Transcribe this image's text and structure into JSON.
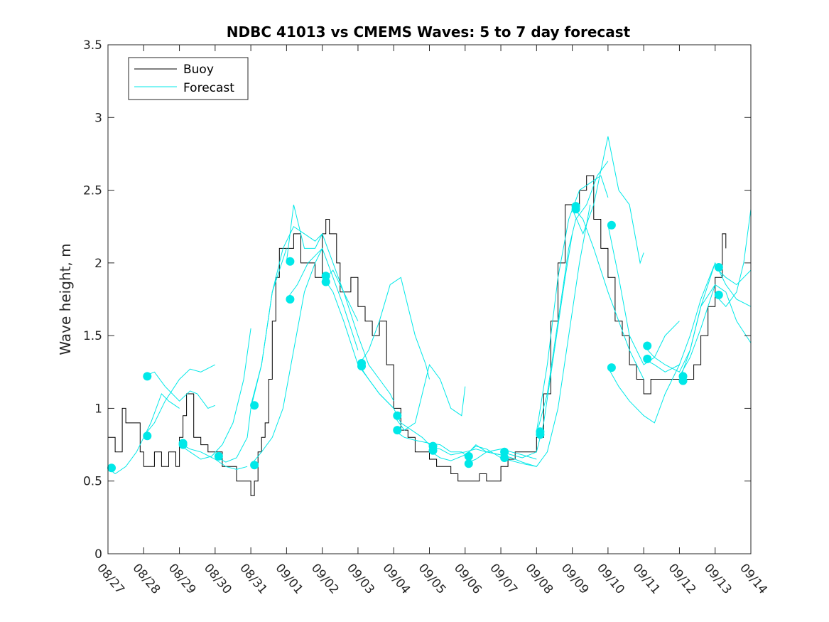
{
  "chart_data": {
    "type": "line",
    "title": "NDBC 41013 vs CMEMS Waves: 5 to 7 day forecast",
    "xlabel": "",
    "ylabel": "Wave height, m",
    "xlim": [
      0,
      18
    ],
    "ylim": [
      0,
      3.5
    ],
    "x_ticks": [
      0,
      1,
      2,
      3,
      4,
      5,
      6,
      7,
      8,
      9,
      10,
      11,
      12,
      13,
      14,
      15,
      16,
      17,
      18
    ],
    "x_tick_labels": [
      "08/27",
      "08/28",
      "08/29",
      "08/30",
      "08/31",
      "09/01",
      "09/02",
      "09/03",
      "09/04",
      "09/05",
      "09/06",
      "09/07",
      "09/08",
      "09/09",
      "09/10",
      "09/11",
      "09/12",
      "09/13",
      "09/14"
    ],
    "y_ticks": [
      0,
      0.5,
      1,
      1.5,
      2,
      2.5,
      3,
      3.5
    ],
    "y_tick_labels": [
      "0",
      "0.5",
      "1",
      "1.5",
      "2",
      "2.5",
      "3",
      "3.5"
    ],
    "grid": false,
    "legend": {
      "position": "top-left",
      "entries": [
        "Buoy",
        "Forecast"
      ]
    },
    "colors": {
      "buoy": "#000000",
      "forecast": "#00e8e8"
    },
    "series": [
      {
        "name": "Buoy",
        "x": [
          0,
          0.2,
          0.4,
          0.5,
          0.7,
          0.9,
          1.0,
          1.1,
          1.3,
          1.5,
          1.7,
          1.9,
          2.0,
          2.1,
          2.2,
          2.4,
          2.6,
          2.8,
          3.0,
          3.2,
          3.4,
          3.6,
          3.8,
          3.9,
          4.0,
          4.1,
          4.2,
          4.3,
          4.4,
          4.5,
          4.6,
          4.7,
          4.8,
          5.0,
          5.2,
          5.4,
          5.6,
          5.8,
          6.0,
          6.1,
          6.2,
          6.3,
          6.4,
          6.5,
          6.6,
          6.8,
          7.0,
          7.2,
          7.4,
          7.6,
          7.8,
          8.0,
          8.2,
          8.4,
          8.6,
          8.8,
          9.0,
          9.2,
          9.4,
          9.6,
          9.8,
          10.0,
          10.2,
          10.4,
          10.6,
          10.8,
          11.0,
          11.2,
          11.4,
          11.6,
          11.8,
          12.0,
          12.2,
          12.4,
          12.6,
          12.8,
          13.0,
          13.2,
          13.4,
          13.6,
          13.8,
          14.0,
          14.2,
          14.4,
          14.6,
          14.8,
          15.0,
          15.2,
          15.4,
          15.6,
          15.8,
          16.0,
          16.2,
          16.4,
          16.6,
          16.8,
          17.0,
          17.2,
          17.3
        ],
        "values": [
          0.8,
          0.7,
          1.0,
          0.9,
          0.9,
          0.7,
          0.6,
          0.6,
          0.7,
          0.6,
          0.7,
          0.6,
          0.8,
          0.95,
          1.1,
          0.8,
          0.75,
          0.7,
          0.7,
          0.6,
          0.6,
          0.5,
          0.5,
          0.5,
          0.4,
          0.5,
          0.7,
          0.8,
          0.9,
          1.2,
          1.6,
          1.9,
          2.1,
          2.1,
          2.2,
          2.0,
          2.0,
          1.9,
          2.2,
          2.3,
          2.2,
          2.2,
          2.0,
          1.8,
          1.8,
          1.9,
          1.7,
          1.6,
          1.5,
          1.6,
          1.3,
          1.0,
          0.85,
          0.8,
          0.7,
          0.7,
          0.65,
          0.6,
          0.6,
          0.55,
          0.5,
          0.5,
          0.5,
          0.55,
          0.5,
          0.5,
          0.6,
          0.65,
          0.7,
          0.7,
          0.7,
          0.8,
          1.1,
          1.6,
          2.0,
          2.4,
          2.4,
          2.5,
          2.6,
          2.3,
          2.1,
          1.9,
          1.6,
          1.5,
          1.3,
          1.2,
          1.1,
          1.2,
          1.2,
          1.2,
          1.2,
          1.2,
          1.2,
          1.3,
          1.5,
          1.7,
          1.9,
          2.2,
          2.1
        ]
      },
      {
        "name": "Forecast 08/27",
        "x": [
          0,
          0.2,
          0.5,
          0.8,
          1.0,
          1.2,
          1.5,
          1.7,
          2.0
        ],
        "values": [
          0.59,
          0.55,
          0.6,
          0.7,
          0.8,
          0.9,
          1.1,
          1.05,
          1.0
        ]
      },
      {
        "name": "Forecast 08/28a",
        "x": [
          1.0,
          1.3,
          1.6,
          2.0,
          2.3,
          2.5,
          2.8,
          3.0
        ],
        "values": [
          1.22,
          1.25,
          1.15,
          1.05,
          1.12,
          1.1,
          1.0,
          1.02
        ]
      },
      {
        "name": "Forecast 08/28b",
        "x": [
          1.0,
          1.3,
          1.6,
          2.0,
          2.3,
          2.6,
          3.0
        ],
        "values": [
          0.81,
          0.9,
          1.05,
          1.2,
          1.27,
          1.25,
          1.3
        ]
      },
      {
        "name": "Forecast 08/29a",
        "x": [
          2.0,
          2.3,
          2.6,
          3.0,
          3.3,
          3.6,
          3.9
        ],
        "values": [
          0.76,
          0.72,
          0.7,
          0.65,
          0.6,
          0.58,
          0.6
        ]
      },
      {
        "name": "Forecast 08/29b",
        "x": [
          2.0,
          2.3,
          2.6,
          2.9,
          3.2,
          3.5,
          3.8,
          4.0
        ],
        "values": [
          0.75,
          0.7,
          0.65,
          0.67,
          0.75,
          0.9,
          1.2,
          1.55
        ]
      },
      {
        "name": "Forecast 08/30",
        "x": [
          3.0,
          3.3,
          3.6,
          3.9,
          4.0,
          4.3,
          4.6,
          5.0
        ],
        "values": [
          0.67,
          0.63,
          0.66,
          0.8,
          1.0,
          1.3,
          1.8,
          2.1
        ]
      },
      {
        "name": "Forecast 08/31a",
        "x": [
          4.0,
          4.3,
          4.6,
          4.9,
          5.2,
          5.5,
          5.8,
          6.0
        ],
        "values": [
          1.02,
          1.3,
          1.8,
          2.1,
          2.25,
          2.2,
          2.15,
          2.2
        ]
      },
      {
        "name": "Forecast 08/31b",
        "x": [
          4.0,
          4.3,
          4.6,
          4.9,
          5.2,
          5.5,
          5.8,
          6.0
        ],
        "values": [
          0.61,
          0.7,
          0.8,
          1.0,
          1.4,
          1.8,
          2.0,
          2.1
        ]
      },
      {
        "name": "Forecast 09/01a",
        "x": [
          5.0,
          5.2,
          5.5,
          5.8,
          6.0,
          6.3,
          6.6,
          7.0
        ],
        "values": [
          2.01,
          2.4,
          2.1,
          2.1,
          2.2,
          2.0,
          1.8,
          1.6
        ]
      },
      {
        "name": "Forecast 09/01b",
        "x": [
          5.0,
          5.3,
          5.6,
          6.0,
          6.3,
          6.6,
          7.0
        ],
        "values": [
          1.75,
          1.85,
          2.0,
          2.1,
          1.9,
          1.7,
          1.4
        ]
      },
      {
        "name": "Forecast 09/02a",
        "x": [
          6.0,
          6.3,
          6.6,
          7.0,
          7.3,
          7.6,
          8.0
        ],
        "values": [
          1.91,
          1.8,
          1.6,
          1.3,
          1.2,
          1.1,
          1.0
        ]
      },
      {
        "name": "Forecast 09/02b",
        "x": [
          6.0,
          6.3,
          6.6,
          7.0,
          7.3,
          7.6,
          7.9,
          8.0
        ],
        "values": [
          1.87,
          1.95,
          1.8,
          1.5,
          1.3,
          1.2,
          1.1,
          1.05
        ]
      },
      {
        "name": "Forecast 09/03a",
        "x": [
          7.0,
          7.3,
          7.6,
          8.0,
          8.2,
          8.5,
          8.8,
          9.0
        ],
        "values": [
          1.31,
          1.2,
          1.1,
          1.0,
          0.9,
          0.85,
          0.8,
          0.75
        ]
      },
      {
        "name": "Forecast 09/03b",
        "x": [
          7.0,
          7.3,
          7.6,
          7.9,
          8.2,
          8.4,
          8.6,
          8.9,
          9.0
        ],
        "values": [
          1.29,
          1.4,
          1.6,
          1.85,
          1.9,
          1.7,
          1.5,
          1.3,
          1.2
        ]
      },
      {
        "name": "Forecast 09/04a",
        "x": [
          8.0,
          8.3,
          8.6,
          9.0,
          9.3,
          9.6,
          9.9,
          10.0
        ],
        "values": [
          0.95,
          0.85,
          0.9,
          1.3,
          1.2,
          1.0,
          0.95,
          1.15
        ]
      },
      {
        "name": "Forecast 09/04b",
        "x": [
          8.0,
          8.3,
          8.6,
          9.0,
          9.3,
          9.6,
          9.9,
          10.0
        ],
        "values": [
          0.85,
          0.8,
          0.78,
          0.76,
          0.75,
          0.7,
          0.7,
          0.68
        ]
      },
      {
        "name": "Forecast 09/05a",
        "x": [
          9.0,
          9.3,
          9.6,
          10.0,
          10.3,
          10.6,
          11.0
        ],
        "values": [
          0.74,
          0.72,
          0.68,
          0.7,
          0.72,
          0.7,
          0.68
        ]
      },
      {
        "name": "Forecast 09/05b",
        "x": [
          9.0,
          9.3,
          9.6,
          10.0,
          10.3,
          10.6,
          11.0
        ],
        "values": [
          0.71,
          0.66,
          0.64,
          0.68,
          0.74,
          0.72,
          0.66
        ]
      },
      {
        "name": "Forecast 09/06a",
        "x": [
          10.0,
          10.3,
          10.6,
          11.0,
          11.3,
          11.6,
          12.0
        ],
        "values": [
          0.67,
          0.75,
          0.7,
          0.72,
          0.7,
          0.68,
          0.65
        ]
      },
      {
        "name": "Forecast 09/06b",
        "x": [
          10.0,
          10.3,
          10.6,
          11.0,
          11.3,
          11.6,
          12.0
        ],
        "values": [
          0.62,
          0.65,
          0.7,
          0.68,
          0.66,
          0.63,
          0.6
        ]
      },
      {
        "name": "Forecast 09/07a",
        "x": [
          11.0,
          11.3,
          11.6,
          12.0,
          12.2,
          12.5,
          12.8,
          13.0
        ],
        "values": [
          0.7,
          0.68,
          0.66,
          0.7,
          0.9,
          1.4,
          1.9,
          2.2
        ]
      },
      {
        "name": "Forecast 09/07b",
        "x": [
          11.0,
          11.3,
          11.6,
          12.0,
          12.3,
          12.6,
          12.9,
          13.2,
          13.5
        ],
        "values": [
          0.66,
          0.64,
          0.62,
          0.6,
          0.7,
          1.0,
          1.5,
          2.0,
          2.4
        ]
      },
      {
        "name": "Forecast 09/08a",
        "x": [
          12.0,
          12.3,
          12.6,
          12.9,
          13.2,
          13.5,
          13.8,
          14.0
        ],
        "values": [
          0.84,
          1.3,
          1.9,
          2.3,
          2.5,
          2.55,
          2.6,
          2.45
        ]
      },
      {
        "name": "Forecast 09/08b",
        "x": [
          12.0,
          12.3,
          12.6,
          12.9,
          13.1,
          13.4,
          13.7,
          14.0
        ],
        "values": [
          0.82,
          1.1,
          1.6,
          2.1,
          2.3,
          2.4,
          2.6,
          2.7
        ]
      },
      {
        "name": "Forecast 09/09a",
        "x": [
          13.0,
          13.3,
          13.6,
          14.0,
          14.3,
          14.6,
          14.9,
          15.0
        ],
        "values": [
          2.37,
          2.2,
          2.4,
          2.87,
          2.5,
          2.4,
          2.0,
          2.07
        ]
      },
      {
        "name": "Forecast 09/09b",
        "x": [
          13.0,
          13.3,
          13.6,
          14.0,
          14.3,
          14.6,
          15.0
        ],
        "values": [
          2.39,
          2.3,
          2.1,
          1.8,
          1.6,
          1.4,
          1.2
        ]
      },
      {
        "name": "Forecast 09/10a",
        "x": [
          14.0,
          14.3,
          14.6,
          15.0,
          15.3,
          15.6,
          16.0
        ],
        "values": [
          2.26,
          1.9,
          1.5,
          1.3,
          1.35,
          1.5,
          1.6
        ]
      },
      {
        "name": "Forecast 09/10b",
        "x": [
          14.0,
          14.3,
          14.6,
          15.0,
          15.3,
          15.6,
          16.0
        ],
        "values": [
          1.28,
          1.15,
          1.05,
          0.95,
          0.9,
          1.1,
          1.3
        ]
      },
      {
        "name": "Forecast 09/11a",
        "x": [
          15.0,
          15.3,
          15.6,
          16.0,
          16.3,
          16.6,
          17.0
        ],
        "values": [
          1.43,
          1.35,
          1.3,
          1.25,
          1.4,
          1.7,
          1.85
        ]
      },
      {
        "name": "Forecast 09/11b",
        "x": [
          15.0,
          15.3,
          15.6,
          16.0,
          16.3,
          16.6,
          17.0
        ],
        "values": [
          1.34,
          1.3,
          1.25,
          1.3,
          1.5,
          1.75,
          2.0
        ]
      },
      {
        "name": "Forecast 09/12a",
        "x": [
          16.0,
          16.3,
          16.6,
          17.0,
          17.3,
          17.6,
          18.0
        ],
        "values": [
          1.22,
          1.35,
          1.55,
          1.85,
          1.8,
          1.6,
          1.45
        ]
      },
      {
        "name": "Forecast 09/12b",
        "x": [
          16.0,
          16.3,
          16.6,
          17.0,
          17.3,
          17.6,
          18.0
        ],
        "values": [
          1.19,
          1.4,
          1.7,
          2.0,
          1.85,
          1.75,
          1.7
        ]
      },
      {
        "name": "Forecast 09/13a",
        "x": [
          17.0,
          17.3,
          17.6,
          18.0
        ],
        "values": [
          1.97,
          1.9,
          1.85,
          1.95
        ]
      },
      {
        "name": "Forecast 09/13b",
        "x": [
          17.0,
          17.3,
          17.6,
          17.8,
          18.0
        ],
        "values": [
          1.78,
          1.7,
          1.8,
          2.0,
          2.37
        ]
      }
    ],
    "markers": [
      {
        "x": 0.1,
        "y": 0.59
      },
      {
        "x": 1.1,
        "y": 1.22
      },
      {
        "x": 1.1,
        "y": 0.81
      },
      {
        "x": 2.1,
        "y": 0.76
      },
      {
        "x": 2.1,
        "y": 0.75
      },
      {
        "x": 3.1,
        "y": 0.67
      },
      {
        "x": 4.1,
        "y": 1.02
      },
      {
        "x": 4.1,
        "y": 0.61
      },
      {
        "x": 5.1,
        "y": 2.01
      },
      {
        "x": 5.1,
        "y": 1.75
      },
      {
        "x": 6.1,
        "y": 1.91
      },
      {
        "x": 6.1,
        "y": 1.87
      },
      {
        "x": 7.1,
        "y": 1.31
      },
      {
        "x": 7.1,
        "y": 1.29
      },
      {
        "x": 8.1,
        "y": 0.95
      },
      {
        "x": 8.1,
        "y": 0.85
      },
      {
        "x": 9.1,
        "y": 0.74
      },
      {
        "x": 9.1,
        "y": 0.71
      },
      {
        "x": 10.1,
        "y": 0.67
      },
      {
        "x": 10.1,
        "y": 0.62
      },
      {
        "x": 11.1,
        "y": 0.7
      },
      {
        "x": 11.1,
        "y": 0.66
      },
      {
        "x": 12.1,
        "y": 0.84
      },
      {
        "x": 12.1,
        "y": 0.82
      },
      {
        "x": 13.1,
        "y": 2.39
      },
      {
        "x": 13.1,
        "y": 2.37
      },
      {
        "x": 14.1,
        "y": 2.26
      },
      {
        "x": 14.1,
        "y": 1.28
      },
      {
        "x": 15.1,
        "y": 1.43
      },
      {
        "x": 15.1,
        "y": 1.34
      },
      {
        "x": 16.1,
        "y": 1.22
      },
      {
        "x": 16.1,
        "y": 1.19
      },
      {
        "x": 17.1,
        "y": 1.97
      },
      {
        "x": 17.1,
        "y": 1.78
      }
    ]
  }
}
